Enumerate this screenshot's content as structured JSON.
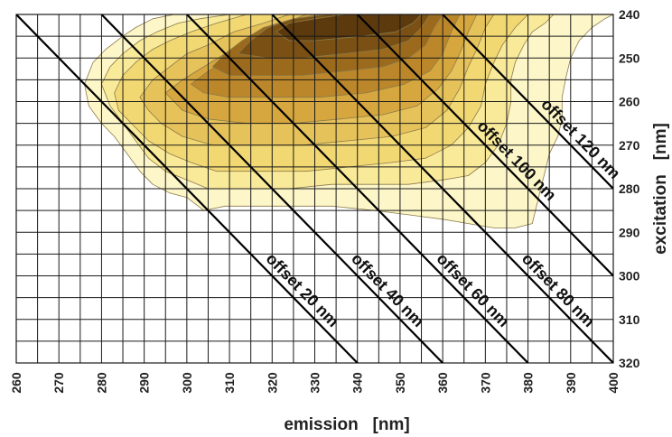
{
  "chart_data": {
    "type": "heatmap",
    "xlabel": "emission   [nm]",
    "ylabel": "excitation   [nm]",
    "xlim": [
      260,
      400
    ],
    "ylim": [
      240,
      320
    ],
    "y_inverted": true,
    "y_axis_side": "right",
    "x_tick_rotation": "vertical",
    "grid": true,
    "grid_step": {
      "x": 5,
      "y": 5
    },
    "x_ticks": [
      260,
      270,
      280,
      290,
      300,
      310,
      320,
      330,
      340,
      350,
      360,
      370,
      380,
      390,
      400
    ],
    "y_ticks": [
      240,
      250,
      260,
      270,
      280,
      290,
      300,
      310,
      320
    ],
    "colors": {
      "grid": "#1a1a1a",
      "diagonal": "#000000",
      "contour_line": "#8a7a4a",
      "levels": [
        "#fdf6c8",
        "#f9ea9a",
        "#f2d873",
        "#e6c25a",
        "#d6a73e",
        "#bb872a",
        "#9b6a1d",
        "#7a5014",
        "#5c3a0d"
      ]
    },
    "contour_levels": [
      {
        "level": 1,
        "polygon": [
          [
            276,
            256
          ],
          [
            278,
            251
          ],
          [
            281,
            248
          ],
          [
            285,
            245
          ],
          [
            288,
            243
          ],
          [
            292,
            241
          ],
          [
            297,
            240
          ],
          [
            400,
            240
          ],
          [
            398,
            241
          ],
          [
            395,
            243
          ],
          [
            392,
            246
          ],
          [
            390,
            250
          ],
          [
            389,
            254
          ],
          [
            388,
            259
          ],
          [
            388,
            264
          ],
          [
            387,
            268
          ],
          [
            385,
            272
          ],
          [
            384,
            276
          ],
          [
            383,
            280
          ],
          [
            382,
            284
          ],
          [
            381,
            288
          ],
          [
            377,
            289
          ],
          [
            372,
            289
          ],
          [
            366,
            288
          ],
          [
            360,
            287
          ],
          [
            352,
            286
          ],
          [
            344,
            285
          ],
          [
            334,
            284
          ],
          [
            326,
            284
          ],
          [
            318,
            284
          ],
          [
            309,
            284
          ],
          [
            304,
            285
          ],
          [
            300,
            282
          ],
          [
            296,
            281
          ],
          [
            292,
            279
          ],
          [
            289,
            276
          ],
          [
            286,
            272
          ],
          [
            283,
            268
          ],
          [
            280,
            265
          ],
          [
            277,
            261
          ]
        ]
      },
      {
        "level": 2,
        "polygon": [
          [
            280,
            256
          ],
          [
            282,
            252
          ],
          [
            285,
            249
          ],
          [
            289,
            246
          ],
          [
            293,
            244
          ],
          [
            298,
            242
          ],
          [
            303,
            241
          ],
          [
            310,
            240
          ],
          [
            386,
            240
          ],
          [
            384,
            242
          ],
          [
            381,
            244
          ],
          [
            379,
            247
          ],
          [
            377,
            251
          ],
          [
            376,
            255
          ],
          [
            376,
            260
          ],
          [
            375,
            265
          ],
          [
            373,
            270
          ],
          [
            370,
            274
          ],
          [
            366,
            277
          ],
          [
            360,
            278
          ],
          [
            352,
            279
          ],
          [
            344,
            279
          ],
          [
            334,
            279
          ],
          [
            324,
            280
          ],
          [
            314,
            280
          ],
          [
            305,
            280
          ],
          [
            300,
            278
          ],
          [
            295,
            276
          ],
          [
            291,
            273
          ],
          [
            288,
            269
          ],
          [
            285,
            265
          ],
          [
            282,
            261
          ]
        ]
      },
      {
        "level": 3,
        "polygon": [
          [
            283,
            258
          ],
          [
            285,
            254
          ],
          [
            288,
            251
          ],
          [
            292,
            248
          ],
          [
            296,
            246
          ],
          [
            301,
            244
          ],
          [
            307,
            242
          ],
          [
            314,
            240
          ],
          [
            380,
            240
          ],
          [
            377,
            243
          ],
          [
            374,
            247
          ],
          [
            372,
            251
          ],
          [
            370,
            256
          ],
          [
            369,
            261
          ],
          [
            366,
            266
          ],
          [
            362,
            270
          ],
          [
            356,
            273
          ],
          [
            348,
            274
          ],
          [
            338,
            275
          ],
          [
            328,
            276
          ],
          [
            317,
            276
          ],
          [
            307,
            276
          ],
          [
            301,
            274
          ],
          [
            296,
            272
          ],
          [
            291,
            269
          ],
          [
            287,
            265
          ],
          [
            284,
            262
          ]
        ]
      },
      {
        "level": 4,
        "polygon": [
          [
            289,
            259
          ],
          [
            292,
            255
          ],
          [
            296,
            252
          ],
          [
            300,
            249
          ],
          [
            305,
            247
          ],
          [
            311,
            244
          ],
          [
            318,
            242
          ],
          [
            324,
            240
          ],
          [
            372,
            240
          ],
          [
            370,
            243
          ],
          [
            368,
            248
          ],
          [
            366,
            252
          ],
          [
            364,
            257
          ],
          [
            361,
            262
          ],
          [
            356,
            266
          ],
          [
            348,
            268
          ],
          [
            338,
            269
          ],
          [
            327,
            270
          ],
          [
            316,
            270
          ],
          [
            306,
            270
          ],
          [
            299,
            268
          ],
          [
            294,
            265
          ],
          [
            291,
            262
          ]
        ]
      },
      {
        "level": 5,
        "polygon": [
          [
            295,
            258
          ],
          [
            299,
            255
          ],
          [
            304,
            252
          ],
          [
            309,
            249
          ],
          [
            314,
            246
          ],
          [
            320,
            243
          ],
          [
            328,
            240
          ],
          [
            368,
            240
          ],
          [
            366,
            244
          ],
          [
            364,
            249
          ],
          [
            362,
            253
          ],
          [
            359,
            257
          ],
          [
            354,
            261
          ],
          [
            346,
            263
          ],
          [
            336,
            264
          ],
          [
            325,
            265
          ],
          [
            314,
            265
          ],
          [
            305,
            264
          ],
          [
            299,
            262
          ]
        ]
      },
      {
        "level": 6,
        "polygon": [
          [
            301,
            256
          ],
          [
            305,
            253
          ],
          [
            309,
            251
          ],
          [
            313,
            248
          ],
          [
            318,
            245
          ],
          [
            325,
            242
          ],
          [
            332,
            240
          ],
          [
            364,
            240
          ],
          [
            362,
            244
          ],
          [
            360,
            249
          ],
          [
            357,
            253
          ],
          [
            351,
            256
          ],
          [
            342,
            258
          ],
          [
            331,
            259
          ],
          [
            320,
            259
          ],
          [
            310,
            259
          ],
          [
            304,
            258
          ]
        ]
      },
      {
        "level": 7,
        "polygon": [
          [
            306,
            252
          ],
          [
            309,
            249
          ],
          [
            313,
            246
          ],
          [
            318,
            243
          ],
          [
            325,
            241
          ],
          [
            332,
            240
          ],
          [
            360,
            240
          ],
          [
            358,
            243
          ],
          [
            356,
            247
          ],
          [
            352,
            250
          ],
          [
            346,
            252
          ],
          [
            337,
            253
          ],
          [
            327,
            254
          ],
          [
            317,
            254
          ],
          [
            310,
            254
          ]
        ]
      },
      {
        "level": 8,
        "polygon": [
          [
            312,
            249
          ],
          [
            315,
            246
          ],
          [
            319,
            243
          ],
          [
            325,
            241
          ],
          [
            333,
            240
          ],
          [
            357,
            240
          ],
          [
            355,
            243
          ],
          [
            352,
            246
          ],
          [
            346,
            248
          ],
          [
            337,
            249
          ],
          [
            327,
            250
          ],
          [
            319,
            250
          ]
        ]
      },
      {
        "level": 9,
        "polygon": [
          [
            321,
            244
          ],
          [
            324,
            242
          ],
          [
            330,
            241
          ],
          [
            337,
            240
          ],
          [
            355,
            240
          ],
          [
            353,
            242
          ],
          [
            349,
            244
          ],
          [
            341,
            245
          ],
          [
            330,
            246
          ],
          [
            324,
            246
          ]
        ]
      }
    ],
    "diagonals": [
      {
        "offset": 20,
        "label": "offset 20 nm"
      },
      {
        "offset": 40,
        "label": "offset 40 nm"
      },
      {
        "offset": 60,
        "label": "offset 60 nm"
      },
      {
        "offset": 80,
        "label": "offset 80 nm"
      },
      {
        "offset": 100,
        "label": "offset 100 nm"
      },
      {
        "offset": 120,
        "label": "offset 120 nm"
      }
    ]
  }
}
